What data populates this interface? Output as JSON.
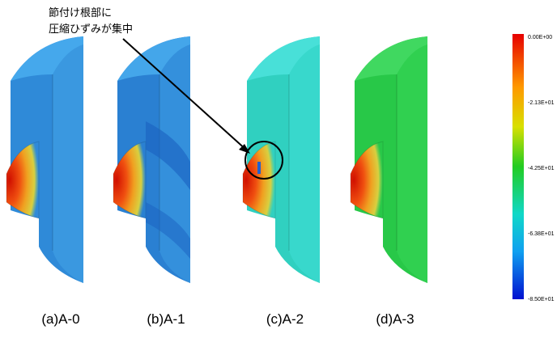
{
  "annotation": {
    "lines": [
      "節付け根部に",
      "圧縮ひずみが集中"
    ]
  },
  "panels": [
    {
      "caption": "(a)A-0"
    },
    {
      "caption": "(b)A-1"
    },
    {
      "caption": "(c)A-2"
    },
    {
      "caption": "(d)A-3"
    }
  ],
  "colorbar": {
    "labels": [
      "0.00E+00",
      "-2.13E+01",
      "-4.25E+01",
      "-6.38E+01",
      "-8.50E+01"
    ]
  }
}
